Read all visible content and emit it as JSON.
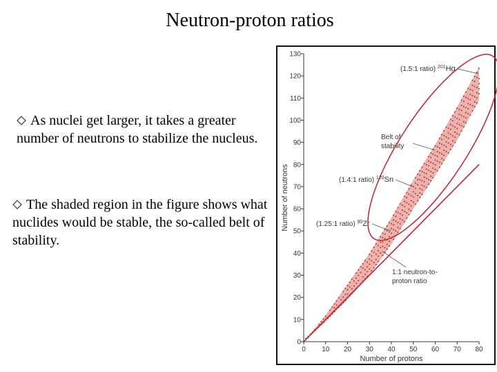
{
  "slide": {
    "title": "Neutron-proton ratios",
    "bullets": [
      "As nuclei get larger, it takes a greater number of neutrons to stabilize the nucleus.",
      "The shaded region in the figure shows what nuclides would be stable, the so-called belt of stability."
    ]
  },
  "colors": {
    "belt": "#f4a09a",
    "line": "#c0202a",
    "dots": "#444444",
    "frame": "#111111"
  },
  "chart_data": {
    "type": "scatter",
    "xlabel": "Number of protons",
    "ylabel": "Number of neutrons",
    "xlim": [
      0,
      80
    ],
    "ylim": [
      0,
      130
    ],
    "xticks": [
      "0",
      "10",
      "20",
      "30",
      "40",
      "50",
      "60",
      "70",
      "80"
    ],
    "yticks": [
      "0",
      "10",
      "20",
      "30",
      "40",
      "50",
      "60",
      "70",
      "80",
      "90",
      "100",
      "110",
      "120",
      "130"
    ],
    "belt": {
      "upper": [
        [
          0,
          0
        ],
        [
          10,
          12
        ],
        [
          20,
          26
        ],
        [
          30,
          40
        ],
        [
          40,
          56
        ],
        [
          50,
          73
        ],
        [
          60,
          89
        ],
        [
          70,
          106
        ],
        [
          80,
          124
        ]
      ],
      "lower": [
        [
          0,
          0
        ],
        [
          10,
          9
        ],
        [
          20,
          19
        ],
        [
          30,
          30
        ],
        [
          40,
          44
        ],
        [
          50,
          60
        ],
        [
          60,
          75
        ],
        [
          70,
          91
        ],
        [
          80,
          109
        ]
      ]
    },
    "reference_line": {
      "label_line1": "1:1 neutron-to-",
      "label_line2": "proton ratio",
      "from": [
        0,
        0
      ],
      "to": [
        80,
        80
      ]
    },
    "annotations": [
      {
        "ratio": "(1.5:1 ratio)",
        "mass": "201",
        "z": "80",
        "symbol": "Hg",
        "point": [
          80,
          121
        ]
      },
      {
        "ratio": "(1.4:1 ratio)",
        "mass": "120",
        "z": "50",
        "symbol": "Sn",
        "point": [
          50,
          70
        ]
      },
      {
        "ratio": "(1.25:1 ratio)",
        "mass": "90",
        "z": "40",
        "symbol": "Zr",
        "point": [
          40,
          50
        ]
      }
    ],
    "belt_label_line1": "Belt of",
    "belt_label_line2": "stability"
  }
}
